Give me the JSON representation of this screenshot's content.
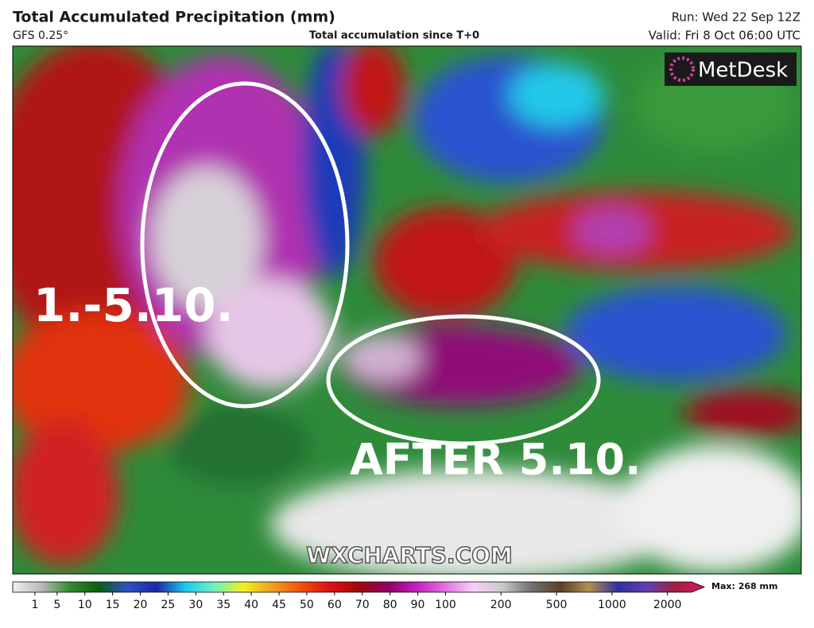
{
  "header": {
    "title": "Total Accumulated Precipitation (mm)",
    "model": "GFS 0.25°",
    "subtitle": "Total accumulation since T+0",
    "run": "Run: Wed 22 Sep 12Z",
    "valid": "Valid: Fri 8 Oct 06:00 UTC"
  },
  "logo": "MetDesk",
  "annotations": [
    "1.-5.10.",
    "AFTER 5.10."
  ],
  "watermark": "WXCHARTS.COM",
  "legend": {
    "ticks": [
      1,
      5,
      10,
      15,
      20,
      25,
      30,
      35,
      40,
      45,
      50,
      60,
      70,
      80,
      90,
      100,
      200,
      500,
      1000,
      2000
    ],
    "max_label": "Max: 268 mm",
    "colors": [
      "#f0f0f0",
      "#b8b8b8",
      "#2e8b2e",
      "#0b5e12",
      "#3050c8",
      "#1a28a0",
      "#20c8f0",
      "#70f0c0",
      "#f0f020",
      "#f0a020",
      "#f05010",
      "#e01010",
      "#a00808",
      "#900060",
      "#c020c0",
      "#e070e0",
      "#f8d0f8",
      "#c8c8c8",
      "#707070",
      "#5a4028",
      "#b09050",
      "#3030a0",
      "#6040b0",
      "#a02040",
      "#e01060"
    ]
  }
}
